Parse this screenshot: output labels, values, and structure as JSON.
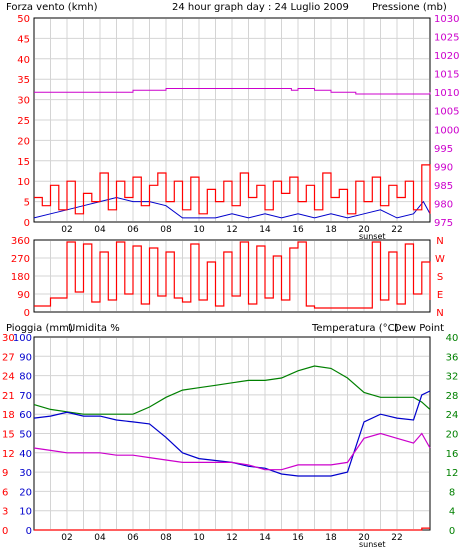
{
  "colors": {
    "wind": "#ff0000",
    "pressure": "#cc00cc",
    "wind_avg_blue": "#0000cc",
    "wind_gust_green": "#008000",
    "direction": "#ff0000",
    "rain": "#ff0000",
    "humidity": "#0000cc",
    "temperature": "#008000",
    "dewpoint": "#cc00cc",
    "grid": "#d4d4d4",
    "frame": "#000000"
  },
  "chart_data": [
    {
      "type": "line",
      "title": "24 hour graph day : 24 Luglio 2009",
      "ylabel": "Forza vento (kmh)",
      "y2label": "Pressione (mb)",
      "ylim": [
        0,
        50
      ],
      "y2lim": [
        975,
        1030
      ],
      "yticks": [
        "0",
        "5",
        "10",
        "15",
        "20",
        "25",
        "30",
        "35",
        "40",
        "45",
        "50"
      ],
      "y2ticks": [
        "975",
        "980",
        "985",
        "990",
        "995",
        "1000",
        "1005",
        "1010",
        "1015",
        "1020",
        "1025",
        "1030"
      ],
      "xticks": [
        "02",
        "04",
        "06",
        "08",
        "10",
        "12",
        "14",
        "16",
        "18",
        "20",
        "22"
      ],
      "xlim": [
        0,
        24
      ],
      "sunset_label": "sunset",
      "series": [
        {
          "key": "pressure",
          "axis": "right",
          "step": true,
          "x": [
            0,
            5.5,
            6,
            8,
            9,
            13,
            14,
            15.6,
            16,
            17,
            18,
            19,
            19.5,
            20,
            22,
            23.5,
            24
          ],
          "values": [
            1010,
            1010,
            1010.5,
            1011,
            1011,
            1011,
            1011,
            1010.5,
            1011,
            1010.5,
            1010,
            1010,
            1009.5,
            1009.5,
            1009.5,
            1009.5,
            1010
          ]
        },
        {
          "key": "wind_avg_blue",
          "axis": "left",
          "step": false,
          "x": [
            0,
            1,
            2,
            3,
            4,
            5,
            6,
            7,
            8,
            9,
            10,
            11,
            12,
            13,
            14,
            15,
            16,
            17,
            18,
            19,
            20,
            21,
            22,
            23,
            23.6,
            24
          ],
          "values": [
            1,
            2,
            3,
            4,
            5,
            6,
            5,
            5,
            4,
            1,
            1,
            1,
            2,
            1,
            2,
            1,
            2,
            1,
            2,
            1,
            2,
            3,
            1,
            2,
            5,
            2
          ]
        },
        {
          "key": "wind",
          "axis": "left",
          "step": true,
          "x": [
            0,
            0.5,
            1,
            1.5,
            2,
            2.5,
            3,
            3.5,
            4,
            4.5,
            5,
            5.5,
            6,
            6.5,
            7,
            7.5,
            8,
            8.5,
            9,
            9.5,
            10,
            10.5,
            11,
            11.5,
            12,
            12.5,
            13,
            13.5,
            14,
            14.5,
            15,
            15.5,
            16,
            16.5,
            17,
            17.5,
            18,
            18.5,
            19,
            19.5,
            20,
            20.5,
            21,
            21.5,
            22,
            22.5,
            23,
            23.5,
            24
          ],
          "values": [
            6,
            4,
            9,
            3,
            10,
            2,
            7,
            5,
            12,
            3,
            10,
            6,
            11,
            4,
            9,
            12,
            5,
            10,
            3,
            11,
            2,
            8,
            5,
            10,
            4,
            12,
            6,
            9,
            3,
            10,
            7,
            11,
            5,
            9,
            3,
            12,
            6,
            8,
            2,
            10,
            5,
            11,
            4,
            9,
            6,
            10,
            3,
            14,
            2
          ]
        }
      ]
    },
    {
      "type": "line",
      "ylabels_left": [
        "0",
        "90",
        "180",
        "270",
        "360"
      ],
      "ylabels_right": [
        "N",
        "E",
        "S",
        "W",
        "N"
      ],
      "ylim": [
        0,
        360
      ],
      "xlim": [
        0,
        24
      ],
      "series": [
        {
          "key": "direction",
          "axis": "left",
          "step": true,
          "x": [
            0,
            1,
            2,
            2.5,
            3,
            3.5,
            4,
            4.5,
            5,
            5.5,
            6,
            6.5,
            7,
            7.5,
            8,
            8.5,
            9,
            9.5,
            10,
            10.5,
            11,
            11.5,
            12,
            12.5,
            13,
            13.5,
            14,
            14.5,
            15,
            15.5,
            16,
            16.5,
            17,
            18,
            19,
            20,
            20.5,
            21,
            21.5,
            22,
            22.5,
            23,
            23.5,
            24
          ],
          "values": [
            30,
            70,
            350,
            100,
            340,
            50,
            300,
            60,
            350,
            90,
            330,
            40,
            320,
            80,
            300,
            70,
            50,
            340,
            60,
            250,
            30,
            300,
            80,
            350,
            40,
            330,
            70,
            280,
            60,
            320,
            350,
            30,
            20,
            20,
            20,
            20,
            350,
            60,
            300,
            40,
            340,
            90,
            250,
            60
          ]
        }
      ]
    },
    {
      "type": "line",
      "ylabel": "Pioggia (mm)",
      "ylabel2": "Umidita %",
      "y2label": "Temperatura (°C)",
      "y3label": "Dew Point",
      "rain_ticks": [
        "0",
        "3",
        "6",
        "9",
        "12",
        "15",
        "18",
        "21",
        "24",
        "27",
        "30"
      ],
      "humidity_ticks": [
        "0",
        "10",
        "20",
        "30",
        "40",
        "50",
        "60",
        "70",
        "80",
        "90",
        "100"
      ],
      "temp_ticks": [
        "0",
        "4",
        "8",
        "12",
        "16",
        "20",
        "24",
        "28",
        "32",
        "36",
        "40"
      ],
      "ylim": [
        0,
        100
      ],
      "y2lim": [
        0,
        40
      ],
      "xticks": [
        "02",
        "04",
        "06",
        "08",
        "10",
        "12",
        "14",
        "16",
        "18",
        "20",
        "22"
      ],
      "xlim": [
        0,
        24
      ],
      "sunset_label": "sunset",
      "series": [
        {
          "key": "temperature",
          "axis": "right",
          "step": false,
          "x": [
            0,
            1,
            2,
            3,
            4,
            5,
            6,
            7,
            8,
            9,
            10,
            11,
            12,
            13,
            14,
            15,
            16,
            17,
            18,
            19,
            20,
            21,
            22,
            23,
            23.5,
            24
          ],
          "values": [
            26,
            25,
            24.5,
            24,
            24,
            24,
            24,
            25.5,
            27.5,
            29,
            29.5,
            30,
            30.5,
            31,
            31,
            31.5,
            33,
            34,
            33.5,
            31.5,
            28.5,
            27.5,
            27.5,
            27.5,
            26.5,
            25
          ]
        },
        {
          "key": "humidity",
          "axis": "left",
          "step": false,
          "x": [
            0,
            1,
            2,
            3,
            4,
            5,
            6,
            7,
            8,
            9,
            10,
            11,
            12,
            13,
            14,
            15,
            16,
            17,
            18,
            19,
            20,
            21,
            22,
            23,
            23.5,
            24
          ],
          "values": [
            58,
            59,
            61,
            59,
            59,
            57,
            56,
            55,
            48,
            40,
            37,
            36,
            35,
            33,
            32,
            29,
            28,
            28,
            28,
            30,
            56,
            60,
            58,
            57,
            70,
            72
          ]
        },
        {
          "key": "dewpoint",
          "axis": "right",
          "step": false,
          "x": [
            0,
            1,
            2,
            3,
            4,
            5,
            6,
            7,
            8,
            9,
            10,
            11,
            12,
            13,
            14,
            15,
            16,
            17,
            18,
            19,
            20,
            21,
            22,
            23,
            23.5,
            24
          ],
          "values": [
            17,
            16.5,
            16,
            16,
            16,
            15.5,
            15.5,
            15,
            14.5,
            14,
            14,
            14,
            14,
            13.5,
            12.5,
            12.5,
            13.5,
            13.5,
            13.5,
            14,
            19,
            20,
            19,
            18,
            20,
            17
          ]
        },
        {
          "key": "rain",
          "axis": "left",
          "step": true,
          "x": [
            0,
            23.4,
            23.5,
            24
          ],
          "values": [
            0,
            0,
            1,
            1
          ]
        }
      ]
    }
  ]
}
